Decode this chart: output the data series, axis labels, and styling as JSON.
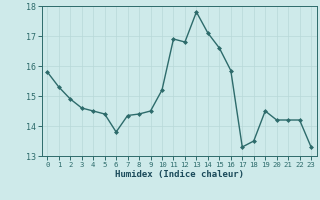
{
  "x": [
    0,
    1,
    2,
    3,
    4,
    5,
    6,
    7,
    8,
    9,
    10,
    11,
    12,
    13,
    14,
    15,
    16,
    17,
    18,
    19,
    20,
    21,
    22,
    23
  ],
  "y": [
    15.8,
    15.3,
    14.9,
    14.6,
    14.5,
    14.4,
    13.8,
    14.35,
    14.4,
    14.5,
    15.2,
    16.9,
    16.8,
    17.8,
    17.1,
    16.6,
    15.85,
    13.3,
    13.5,
    14.5,
    14.2,
    14.2,
    14.2,
    13.3
  ],
  "xlabel": "Humidex (Indice chaleur)",
  "ylim": [
    13,
    18
  ],
  "xlim_left": -0.5,
  "xlim_right": 23.5,
  "yticks": [
    13,
    14,
    15,
    16,
    17,
    18
  ],
  "xticks": [
    0,
    1,
    2,
    3,
    4,
    5,
    6,
    7,
    8,
    9,
    10,
    11,
    12,
    13,
    14,
    15,
    16,
    17,
    18,
    19,
    20,
    21,
    22,
    23
  ],
  "line_color": "#2d6b6b",
  "marker_color": "#2d6b6b",
  "bg_color": "#ceeaea",
  "grid_color": "#b8d8d8",
  "tick_color": "#2d6b6b",
  "label_color": "#1a4a5a",
  "spine_color": "#2d6b6b"
}
